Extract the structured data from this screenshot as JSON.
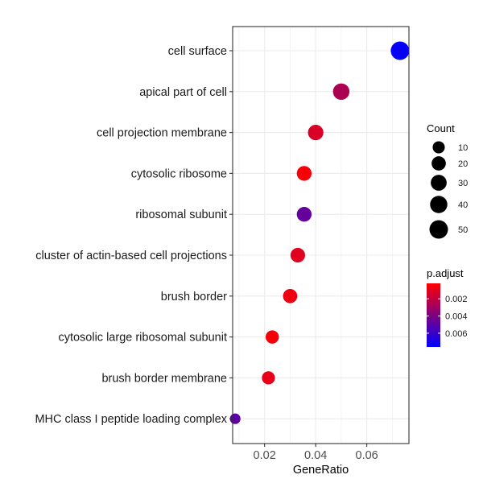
{
  "chart_data": {
    "type": "scatter",
    "xlabel": "GeneRatio",
    "ylabel": "",
    "xlim": [
      0.0075,
      0.0765
    ],
    "x_ticks": [
      0.02,
      0.04,
      0.06
    ],
    "x_tick_labels": [
      "0.02",
      "0.04",
      "0.06"
    ],
    "grid": true,
    "categories": [
      "cell surface",
      "apical part of cell",
      "cell projection membrane",
      "cytosolic ribosome",
      "ribosomal subunit",
      "cluster of actin-based cell projections",
      "brush border",
      "cytosolic large ribosomal subunit",
      "brush border membrane",
      "MHC class I peptide loading complex"
    ],
    "points": [
      {
        "category": "cell surface",
        "gene_ratio": 0.073,
        "count": 50,
        "p_adjust": 0.0074
      },
      {
        "category": "apical part of cell",
        "gene_ratio": 0.05,
        "count": 34,
        "p_adjust": 0.0026
      },
      {
        "category": "cell projection membrane",
        "gene_ratio": 0.04,
        "count": 27,
        "p_adjust": 0.0013
      },
      {
        "category": "cytosolic ribosome",
        "gene_ratio": 0.0355,
        "count": 23,
        "p_adjust": 0.0004
      },
      {
        "category": "ribosomal subunit",
        "gene_ratio": 0.0355,
        "count": 23,
        "p_adjust": 0.0047
      },
      {
        "category": "cluster of actin-based cell projections",
        "gene_ratio": 0.033,
        "count": 22,
        "p_adjust": 0.0011
      },
      {
        "category": "brush border",
        "gene_ratio": 0.03,
        "count": 20,
        "p_adjust": 0.0007
      },
      {
        "category": "cytosolic large ribosomal subunit",
        "gene_ratio": 0.023,
        "count": 15,
        "p_adjust": 0.0004
      },
      {
        "category": "brush border membrane",
        "gene_ratio": 0.0215,
        "count": 14,
        "p_adjust": 0.0009
      },
      {
        "category": "MHC class I peptide loading complex",
        "gene_ratio": 0.0085,
        "count": 5,
        "p_adjust": 0.005
      }
    ],
    "size_legend": {
      "title": "Count",
      "values": [
        10,
        20,
        30,
        40,
        50
      ],
      "labels": [
        "10",
        "20",
        "30",
        "40",
        "50"
      ]
    },
    "color_legend": {
      "title": "p.adjust",
      "range": [
        0.0002,
        0.0076
      ],
      "ticks": [
        0.002,
        0.004,
        0.006
      ],
      "tick_labels": [
        "0.002",
        "0.004",
        "0.006"
      ],
      "low_color": "#FF0000",
      "high_color": "#0000FF"
    },
    "colors": {
      "grid": "#EBEBEB",
      "panel_border": "#333333",
      "point_outline": "none"
    }
  }
}
